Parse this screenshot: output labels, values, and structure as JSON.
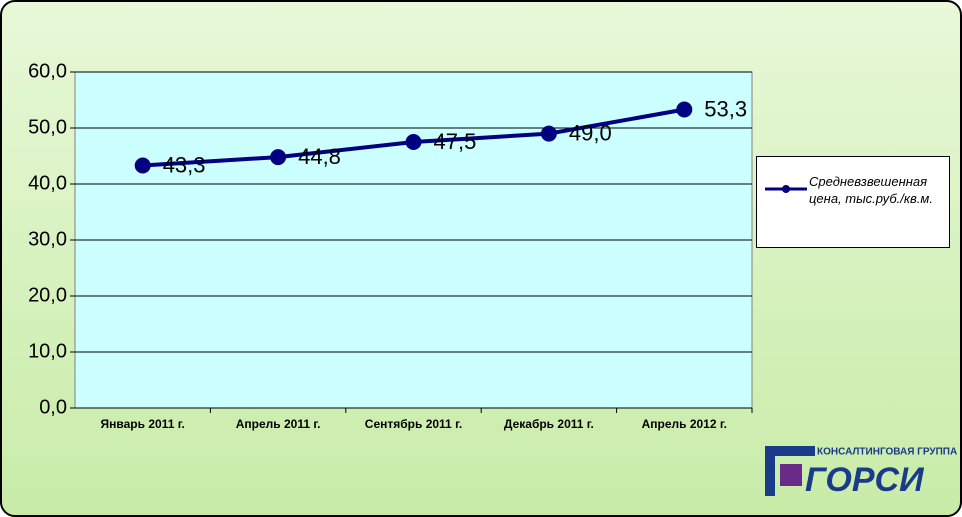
{
  "chart_data": {
    "type": "line",
    "categories": [
      "Январь 2011 г.",
      "Апрель 2011 г.",
      "Сентябрь 2011 г.",
      "Декабрь 2011 г.",
      "Апрель 2012 г."
    ],
    "series": [
      {
        "name": "Средневзвешенная цена, тыс.руб./кв.м.",
        "color": "#000080",
        "values": [
          43.3,
          44.8,
          47.5,
          49.0,
          53.3
        ],
        "value_labels": [
          "43,3",
          "44,8",
          "47,5",
          "49,0",
          "53,3"
        ]
      }
    ],
    "ylim": [
      0,
      60
    ],
    "yticks": [
      {
        "value": 0,
        "label": "0,0"
      },
      {
        "value": 10,
        "label": "10,0"
      },
      {
        "value": 20,
        "label": "20,0"
      },
      {
        "value": 30,
        "label": "30,0"
      },
      {
        "value": 40,
        "label": "40,0"
      },
      {
        "value": 50,
        "label": "50,0"
      },
      {
        "value": 60,
        "label": "60,0"
      }
    ],
    "grid": true,
    "legend": "right"
  },
  "logo": {
    "caption": "КОНСАЛТИНГОВАЯ ГРУППА",
    "name": "ГОРСИ"
  }
}
